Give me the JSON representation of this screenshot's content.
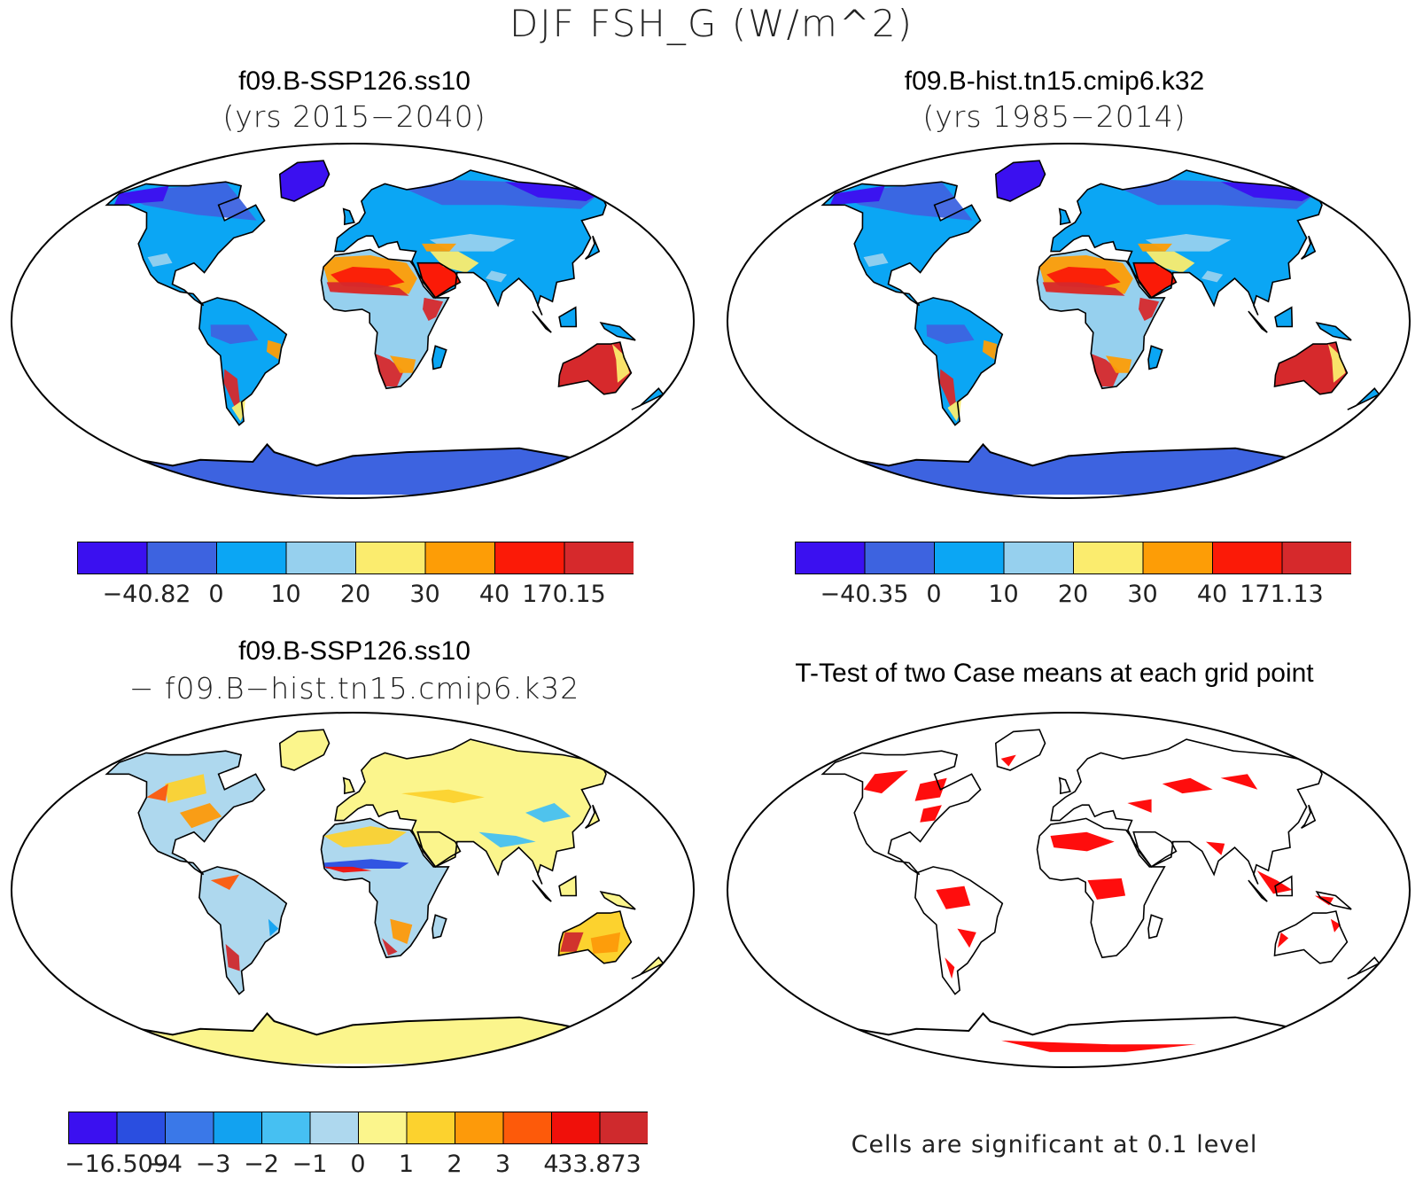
{
  "figure": {
    "title": "DJF FSH_G (W/m^2)"
  },
  "panels": {
    "case1": {
      "name": "f09.B-SSP126.ss10",
      "years": "(yrs 2015−2040)",
      "colorbar": {
        "labels": [
          "−40.82",
          "0",
          "10",
          "20",
          "30",
          "40",
          "170.15"
        ],
        "colors": [
          "#3b10f0",
          "#3d63e0",
          "#0ba6f4",
          "#96d0ee",
          "#fbec6e",
          "#fd9d06",
          "#fb1a07",
          "#d6292c"
        ]
      }
    },
    "case2": {
      "name": "f09.B-hist.tn15.cmip6.k32",
      "years": "(yrs 1985−2014)",
      "colorbar": {
        "labels": [
          "−40.35",
          "0",
          "10",
          "20",
          "30",
          "40",
          "171.13"
        ],
        "colors": [
          "#3b10f0",
          "#3d63e0",
          "#0ba6f4",
          "#96d0ee",
          "#fbec6e",
          "#fd9d06",
          "#fb1a07",
          "#d6292c"
        ]
      }
    },
    "diff": {
      "name": "f09.B-SSP126.ss10",
      "subtitle": "− f09.B−hist.tn15.cmip6.k32",
      "colorbar": {
        "labels": [
          "−16.509",
          "−4",
          "−3",
          "−2",
          "−1",
          "0",
          "1",
          "2",
          "3",
          "4",
          "33.873"
        ],
        "colors": [
          "#3b10f0",
          "#2a4ee0",
          "#3a78e8",
          "#12a2f0",
          "#46c0f2",
          "#aed8ee",
          "#fbf58c",
          "#fcd22e",
          "#fd9a0a",
          "#fd5a0a",
          "#f0100a",
          "#cf2a2d"
        ]
      }
    },
    "ttest": {
      "title": "T-Test of two Case means at each grid point",
      "note": "Cells are significant at 0.1 level",
      "significant_color": "#ff0000"
    }
  }
}
